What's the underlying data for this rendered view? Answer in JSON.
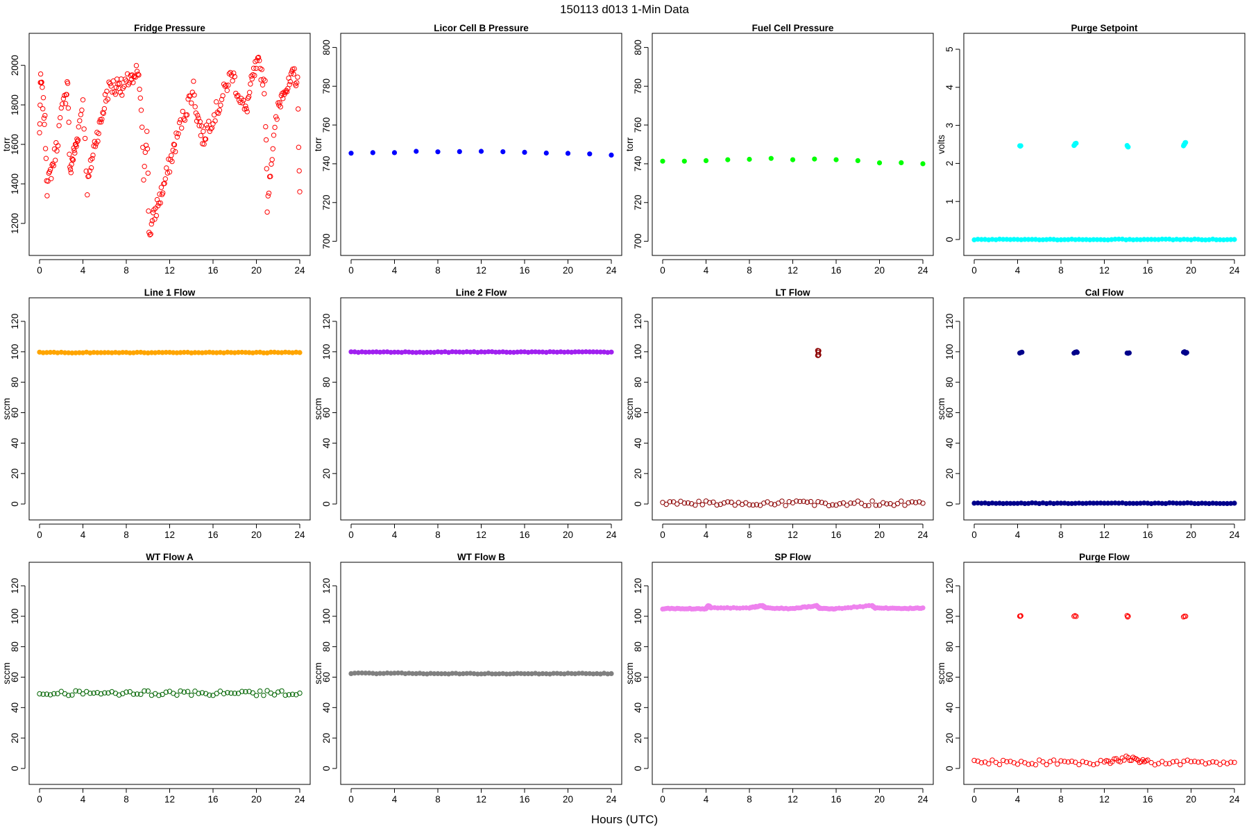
{
  "figure": {
    "title": "150113   d013   1-Min Data",
    "x_axis_title": "Hours (UTC)"
  },
  "chart_data": [
    {
      "type": "scatter",
      "title": "Fridge Pressure",
      "ylabel": "torr",
      "color": "#ff0000",
      "marker": "open-circle",
      "xlim": [
        0,
        24
      ],
      "xticks": [
        0,
        4,
        8,
        12,
        16,
        20,
        24
      ],
      "ylim": [
        1080,
        2120
      ],
      "yticks": [
        1200,
        1400,
        1600,
        1800,
        2000
      ],
      "series": [
        {
          "x": [
            0,
            0.1,
            0.3,
            0.5,
            0.7,
            1.0,
            1.3,
            1.6,
            2.0,
            2.4,
            2.6,
            2.8,
            3.0,
            3.2,
            3.4,
            3.6,
            4.0,
            4.4,
            4.7,
            5.0,
            5.3,
            5.6,
            5.9,
            6.2,
            6.6,
            7.0,
            7.3,
            7.6,
            8.0,
            8.4,
            8.7,
            9.0,
            9.3,
            9.6,
            9.9,
            10.1,
            10.4,
            10.7,
            11.0,
            11.3,
            11.6,
            12.0,
            12.3,
            12.6,
            13.0,
            13.4,
            13.8,
            14.2,
            14.5,
            14.8,
            15.1,
            15.4,
            15.8,
            16.2,
            16.6,
            17.0,
            17.4,
            17.8,
            18.2,
            18.6,
            19.0,
            19.3,
            19.6,
            19.9,
            20.2,
            20.5,
            20.8,
            21.0,
            21.3,
            21.6,
            22.0,
            22.3,
            22.6,
            22.9,
            23.2,
            23.5,
            23.8,
            24.0
          ],
          "y": [
            1650,
            1940,
            1820,
            1700,
            1380,
            1450,
            1520,
            1600,
            1750,
            1850,
            1920,
            1450,
            1520,
            1560,
            1600,
            1680,
            1830,
            1380,
            1480,
            1580,
            1650,
            1700,
            1780,
            1860,
            1900,
            1880,
            1930,
            1870,
            1900,
            1950,
            1900,
            1980,
            1850,
            1450,
            1700,
            1150,
            1200,
            1260,
            1320,
            1360,
            1420,
            1500,
            1560,
            1620,
            1700,
            1760,
            1820,
            1890,
            1750,
            1700,
            1620,
            1680,
            1720,
            1760,
            1800,
            1860,
            1920,
            1960,
            1880,
            1820,
            1760,
            1840,
            1920,
            1980,
            2000,
            1960,
            1880,
            1300,
            1480,
            1620,
            1780,
            1840,
            1900,
            1880,
            1920,
            1960,
            1900,
            1360
          ]
        }
      ]
    },
    {
      "type": "scatter",
      "title": "Licor Cell B Pressure",
      "ylabel": "torr",
      "color": "#0000ff",
      "marker": "filled",
      "xlim": [
        0,
        24
      ],
      "xticks": [
        0,
        4,
        8,
        12,
        16,
        20,
        24
      ],
      "ylim": [
        697,
        803
      ],
      "yticks": [
        700,
        720,
        740,
        760,
        780,
        800
      ],
      "series": [
        {
          "x": [
            0,
            2,
            4,
            6,
            8,
            10,
            12,
            14,
            16,
            18,
            20,
            22,
            24
          ],
          "y": [
            745.5,
            745.5,
            746,
            746,
            746.3,
            746.5,
            746.5,
            746.5,
            746.3,
            745.8,
            745,
            744.8,
            744.5
          ]
        }
      ]
    },
    {
      "type": "scatter",
      "title": "Fuel Cell Pressure",
      "ylabel": "torr",
      "color": "#00ff00",
      "marker": "filled",
      "xlim": [
        0,
        24
      ],
      "xticks": [
        0,
        4,
        8,
        12,
        16,
        20,
        24
      ],
      "ylim": [
        697,
        803
      ],
      "yticks": [
        700,
        720,
        740,
        760,
        780,
        800
      ],
      "series": [
        {
          "x": [
            0,
            2,
            4,
            6,
            8,
            10,
            12,
            14,
            16,
            18,
            20,
            22,
            24
          ],
          "y": [
            741.5,
            741.5,
            742,
            742.2,
            742.2,
            742.5,
            742.3,
            742.5,
            742.3,
            741.5,
            740.5,
            740.5,
            740
          ]
        }
      ]
    },
    {
      "type": "scatter",
      "title": "Purge Setpoint",
      "ylabel": "volts",
      "color": "#00ffff",
      "marker": "filled",
      "xlim": [
        0,
        24
      ],
      "xticks": [
        0,
        4,
        8,
        12,
        16,
        20,
        24
      ],
      "ylim": [
        -0.2,
        5.2
      ],
      "yticks": [
        0,
        1,
        2,
        3,
        4,
        5
      ],
      "series": [
        {
          "x": [
            0,
            4,
            8,
            12,
            16,
            20,
            24
          ],
          "y": [
            0,
            0,
            0,
            0,
            0,
            0,
            0
          ],
          "baseline": true
        },
        {
          "x": [
            4.2,
            4.3,
            9.2,
            9.3,
            9.4,
            14.1,
            14.2,
            19.3,
            19.4,
            19.5
          ],
          "y": [
            2.45,
            2.45,
            2.45,
            2.5,
            2.55,
            2.45,
            2.45,
            2.45,
            2.5,
            2.55
          ]
        }
      ]
    },
    {
      "type": "scatter",
      "title": "Line 1 Flow",
      "ylabel": "sccm",
      "color": "#ffa500",
      "marker": "filled",
      "xlim": [
        0,
        24
      ],
      "xticks": [
        0,
        4,
        8,
        12,
        16,
        20,
        24
      ],
      "ylim": [
        -5,
        130
      ],
      "yticks": [
        0,
        20,
        40,
        60,
        80,
        100,
        120
      ],
      "series": [
        {
          "x": [
            0,
            4,
            8,
            12,
            16,
            20,
            24
          ],
          "y": [
            99.5,
            99.5,
            99.5,
            99.5,
            99.5,
            99.5,
            99.5
          ],
          "baseline": true
        }
      ]
    },
    {
      "type": "scatter",
      "title": "Line 2 Flow",
      "ylabel": "sccm",
      "color": "#a020f0",
      "marker": "filled",
      "xlim": [
        0,
        24
      ],
      "xticks": [
        0,
        4,
        8,
        12,
        16,
        20,
        24
      ],
      "ylim": [
        -5,
        130
      ],
      "yticks": [
        0,
        20,
        40,
        60,
        80,
        100,
        120
      ],
      "series": [
        {
          "x": [
            0,
            4,
            8,
            12,
            16,
            20,
            24
          ],
          "y": [
            99.8,
            99.8,
            99.8,
            99.8,
            99.8,
            99.8,
            99.8
          ],
          "baseline": true
        }
      ]
    },
    {
      "type": "scatter",
      "title": "LT Flow",
      "ylabel": "sccm",
      "color": "#8b0000",
      "marker": "open-circle",
      "xlim": [
        0,
        24
      ],
      "xticks": [
        0,
        4,
        8,
        12,
        16,
        20,
        24
      ],
      "ylim": [
        -5,
        130
      ],
      "yticks": [
        0,
        20,
        40,
        60,
        80,
        100,
        120
      ],
      "series": [
        {
          "x": [
            0,
            4,
            8,
            12,
            16,
            20,
            24
          ],
          "y": [
            0.5,
            0.5,
            0.5,
            0.5,
            0.5,
            0.5,
            0.5
          ],
          "baseline": true
        },
        {
          "x": [
            14.3,
            14.4,
            14.3,
            14.4
          ],
          "y": [
            101,
            101,
            98,
            98
          ]
        }
      ]
    },
    {
      "type": "scatter",
      "title": "Cal Flow",
      "ylabel": "sccm",
      "color": "#00008b",
      "marker": "filled",
      "xlim": [
        0,
        24
      ],
      "xticks": [
        0,
        4,
        8,
        12,
        16,
        20,
        24
      ],
      "ylim": [
        -5,
        130
      ],
      "yticks": [
        0,
        20,
        40,
        60,
        80,
        100,
        120
      ],
      "series": [
        {
          "x": [
            0,
            4,
            8,
            12,
            16,
            20,
            24
          ],
          "y": [
            0.5,
            0.5,
            0.5,
            0.5,
            0.5,
            0.5,
            0.5
          ],
          "baseline": true
        },
        {
          "x": [
            4.2,
            4.4,
            9.2,
            9.4,
            9.5,
            14.1,
            14.3,
            19.3,
            19.5,
            19.6
          ],
          "y": [
            99.5,
            99.5,
            99.5,
            99.5,
            99.5,
            99.5,
            99.5,
            99.5,
            99.5,
            99.5
          ]
        }
      ]
    },
    {
      "type": "scatter",
      "title": "WT Flow A",
      "ylabel": "sccm",
      "color": "#006400",
      "marker": "open-circle",
      "xlim": [
        0,
        24
      ],
      "xticks": [
        0,
        4,
        8,
        12,
        16,
        20,
        24
      ],
      "ylim": [
        -5,
        130
      ],
      "yticks": [
        0,
        20,
        40,
        60,
        80,
        100,
        120
      ],
      "series": [
        {
          "x": [
            0,
            4,
            8,
            12,
            16,
            20,
            24
          ],
          "y": [
            49.5,
            49.5,
            49.5,
            49.5,
            49.5,
            49.5,
            49.5
          ],
          "baseline": true
        }
      ]
    },
    {
      "type": "scatter",
      "title": "WT Flow B",
      "ylabel": "sccm",
      "color": "#808080",
      "marker": "filled",
      "xlim": [
        0,
        24
      ],
      "xticks": [
        0,
        4,
        8,
        12,
        16,
        20,
        24
      ],
      "ylim": [
        -5,
        130
      ],
      "yticks": [
        0,
        20,
        40,
        60,
        80,
        100,
        120
      ],
      "series": [
        {
          "x": [
            0,
            4,
            8,
            12,
            16,
            20,
            24
          ],
          "y": [
            62.5,
            62.5,
            62.3,
            62.3,
            62.3,
            62.3,
            62.3
          ],
          "baseline": true
        }
      ]
    },
    {
      "type": "scatter",
      "title": "SP Flow",
      "ylabel": "sccm",
      "color": "#ee82ee",
      "marker": "filled",
      "xlim": [
        0,
        24
      ],
      "xticks": [
        0,
        4,
        8,
        12,
        16,
        20,
        24
      ],
      "ylim": [
        -5,
        130
      ],
      "yticks": [
        0,
        20,
        40,
        60,
        80,
        100,
        120
      ],
      "series": [
        {
          "x": [
            0,
            2,
            4,
            4.2,
            4.5,
            8,
            9.2,
            9.5,
            12,
            14.2,
            14.5,
            16,
            19.3,
            19.6,
            22,
            24
          ],
          "y": [
            105,
            105,
            105,
            107,
            105.5,
            105.5,
            107,
            105.5,
            105,
            107,
            105,
            105,
            107,
            105.5,
            105,
            105.5
          ],
          "baseline": true
        }
      ]
    },
    {
      "type": "scatter",
      "title": "Purge Flow",
      "ylabel": "sccm",
      "color": "#ff0000",
      "marker": "open-circle",
      "xlim": [
        0,
        24
      ],
      "xticks": [
        0,
        4,
        8,
        12,
        16,
        20,
        24
      ],
      "ylim": [
        -5,
        130
      ],
      "yticks": [
        0,
        20,
        40,
        60,
        80,
        100,
        120
      ],
      "series": [
        {
          "x": [
            0,
            4,
            8,
            12,
            14.2,
            16,
            20,
            24
          ],
          "y": [
            4,
            4,
            4,
            4,
            7,
            4,
            4,
            4
          ],
          "baseline": true
        },
        {
          "x": [
            4.2,
            4.3,
            9.2,
            9.4,
            14.1,
            14.2,
            19.3,
            19.5
          ],
          "y": [
            100,
            100,
            100,
            100,
            100,
            100,
            100,
            100
          ]
        }
      ]
    }
  ]
}
